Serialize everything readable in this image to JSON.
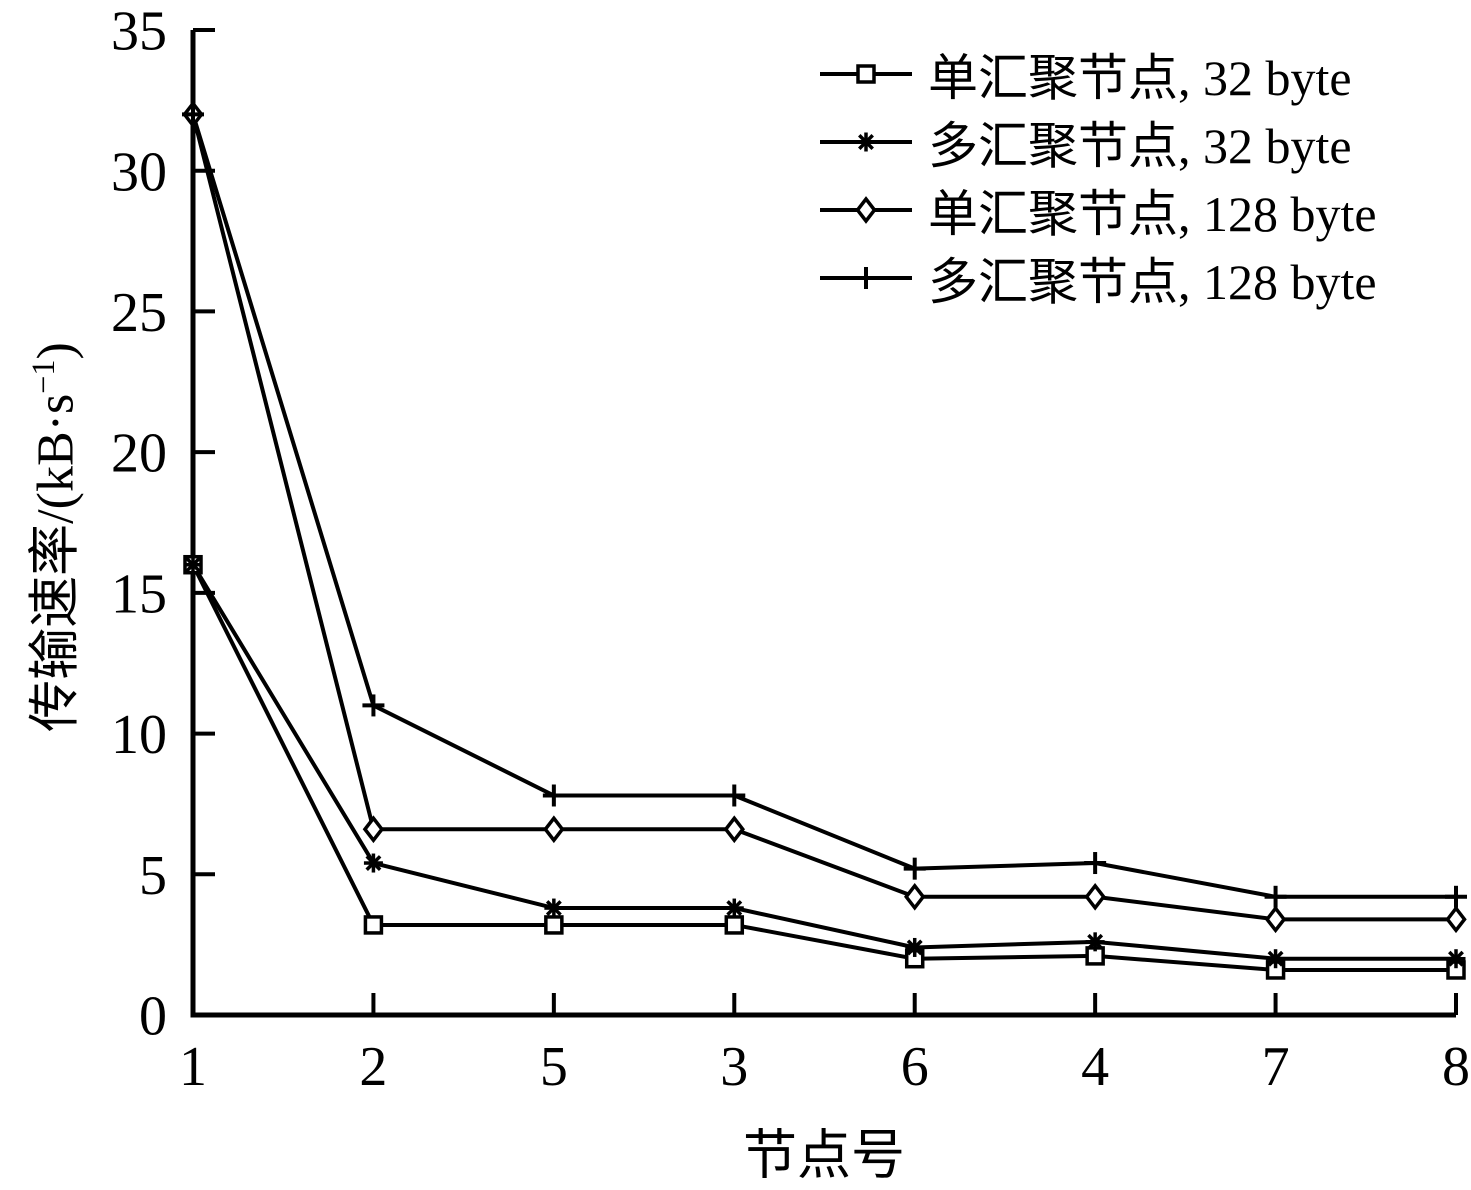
{
  "figure": {
    "ylabel_prefix": "传输速率/(kB·s",
    "ylabel_sup": "−1",
    "ylabel_suffix": ")",
    "xlabel": "节点号"
  },
  "chart_data": {
    "type": "line",
    "title": "",
    "xlabel": "节点号",
    "ylabel": "传输速率/(kB·s⁻¹)",
    "categories": [
      "1",
      "2",
      "5",
      "3",
      "6",
      "4",
      "7",
      "8"
    ],
    "ylim": [
      0,
      35
    ],
    "yticks": [
      0,
      5,
      10,
      15,
      20,
      25,
      30,
      35
    ],
    "grid": false,
    "legend_position": "top-right",
    "color": "#000000",
    "series": [
      {
        "name": "单汇聚节点, 32 byte",
        "marker": "square",
        "values": [
          16,
          3.2,
          3.2,
          3.2,
          2.0,
          2.1,
          1.6,
          1.6
        ]
      },
      {
        "name": "多汇聚节点, 32 byte",
        "marker": "asterisk",
        "values": [
          16,
          5.4,
          3.8,
          3.8,
          2.4,
          2.6,
          2.0,
          2.0
        ]
      },
      {
        "name": "单汇聚节点, 128 byte",
        "marker": "diamond",
        "values": [
          32,
          6.6,
          6.6,
          6.6,
          4.2,
          4.2,
          3.4,
          3.4
        ]
      },
      {
        "name": "多汇聚节点, 128 byte",
        "marker": "plus",
        "values": [
          32,
          11.0,
          7.8,
          7.8,
          5.2,
          5.4,
          4.2,
          4.2
        ]
      }
    ]
  }
}
